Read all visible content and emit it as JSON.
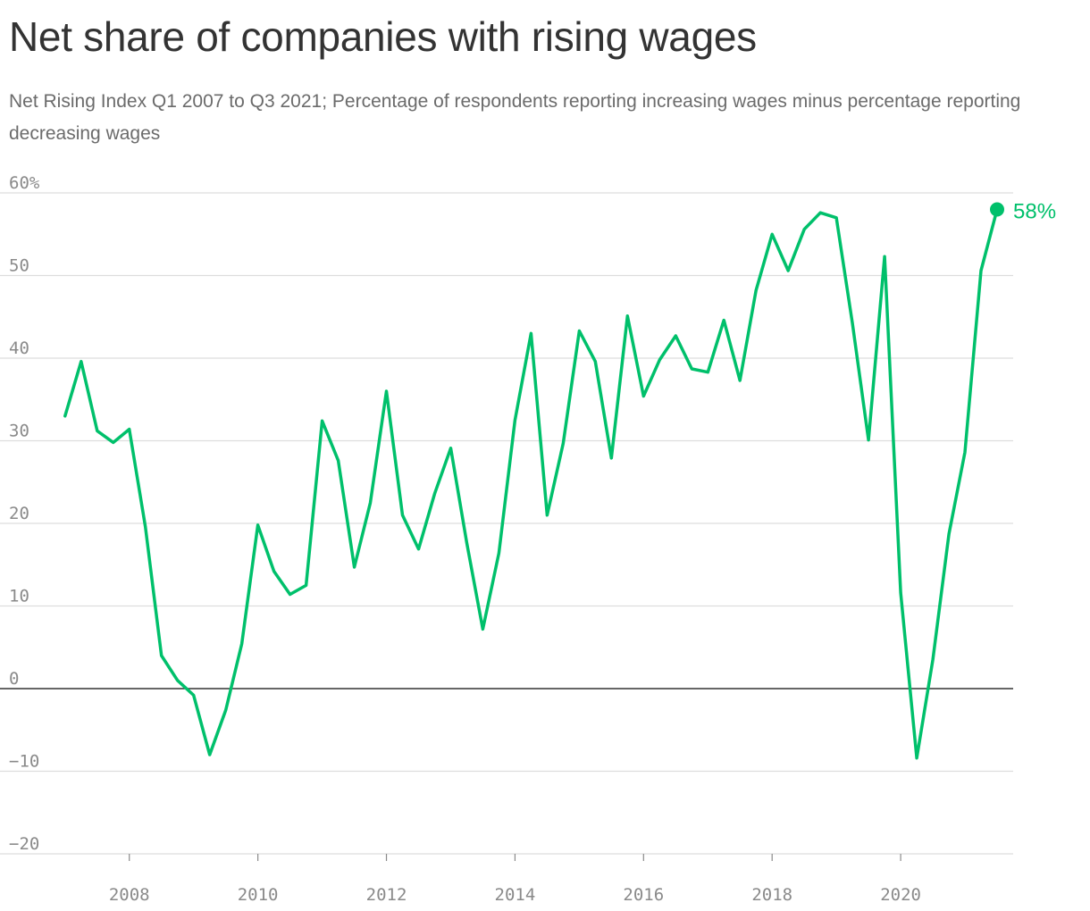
{
  "header": {
    "title": "Net share of companies with rising wages",
    "subtitle": "Net Rising Index Q1 2007 to Q3 2021; Percentage of respondents reporting increasing wages minus percentage reporting decreasing wages"
  },
  "colors": {
    "line": "#00c06b",
    "grid": "#dddddd",
    "zero": "#333333",
    "tick": "#8a8a8a"
  },
  "chart_data": {
    "type": "line",
    "title": "Net share of companies with rising wages",
    "subtitle": "Net Rising Index Q1 2007 to Q3 2021; Percentage of respondents reporting increasing wages minus percentage reporting decreasing wages",
    "xlabel": "",
    "ylabel": "",
    "x": [
      "2007-Q1",
      "2007-Q2",
      "2007-Q3",
      "2007-Q4",
      "2008-Q1",
      "2008-Q2",
      "2008-Q3",
      "2008-Q4",
      "2009-Q1",
      "2009-Q2",
      "2009-Q3",
      "2009-Q4",
      "2010-Q1",
      "2010-Q2",
      "2010-Q3",
      "2010-Q4",
      "2011-Q1",
      "2011-Q2",
      "2011-Q3",
      "2011-Q4",
      "2012-Q1",
      "2012-Q2",
      "2012-Q3",
      "2012-Q4",
      "2013-Q1",
      "2013-Q2",
      "2013-Q3",
      "2013-Q4",
      "2014-Q1",
      "2014-Q2",
      "2014-Q3",
      "2014-Q4",
      "2015-Q1",
      "2015-Q2",
      "2015-Q3",
      "2015-Q4",
      "2016-Q1",
      "2016-Q2",
      "2016-Q3",
      "2016-Q4",
      "2017-Q1",
      "2017-Q2",
      "2017-Q3",
      "2017-Q4",
      "2018-Q1",
      "2018-Q2",
      "2018-Q3",
      "2018-Q4",
      "2019-Q1",
      "2019-Q2",
      "2019-Q3",
      "2019-Q4",
      "2020-Q1",
      "2020-Q2",
      "2020-Q3",
      "2020-Q4",
      "2021-Q1",
      "2021-Q2",
      "2021-Q3"
    ],
    "x_numeric": [
      2007.0,
      2007.25,
      2007.5,
      2007.75,
      2008.0,
      2008.25,
      2008.5,
      2008.75,
      2009.0,
      2009.25,
      2009.5,
      2009.75,
      2010.0,
      2010.25,
      2010.5,
      2010.75,
      2011.0,
      2011.25,
      2011.5,
      2011.75,
      2012.0,
      2012.25,
      2012.5,
      2012.75,
      2013.0,
      2013.25,
      2013.5,
      2013.75,
      2014.0,
      2014.25,
      2014.5,
      2014.75,
      2015.0,
      2015.25,
      2015.5,
      2015.75,
      2016.0,
      2016.25,
      2016.5,
      2016.75,
      2017.0,
      2017.25,
      2017.5,
      2017.75,
      2018.0,
      2018.25,
      2018.5,
      2018.75,
      2019.0,
      2019.25,
      2019.5,
      2019.75,
      2020.0,
      2020.25,
      2020.5,
      2020.75,
      2021.0,
      2021.25,
      2021.5
    ],
    "series": [
      {
        "values": [
          33.0,
          39.6,
          31.2,
          29.8,
          31.4,
          19.6,
          4.0,
          1.0,
          -0.8,
          -8.0,
          -2.6,
          5.4,
          19.8,
          14.2,
          11.4,
          12.5,
          32.4,
          27.6,
          14.7,
          22.5,
          36.0,
          21.0,
          16.9,
          23.6,
          29.1,
          17.6,
          7.2,
          16.4,
          32.5,
          43.0,
          21.0,
          29.7,
          43.3,
          39.6,
          27.9,
          45.1,
          35.4,
          39.8,
          42.7,
          38.7,
          38.3,
          44.6,
          37.3,
          48.2,
          55.0,
          50.6,
          55.6,
          57.6,
          57.0,
          44.2,
          30.1,
          52.3,
          11.6,
          -8.4,
          3.5,
          18.7,
          28.6,
          50.6,
          58.0
        ]
      }
    ],
    "end_label": "58%",
    "xlim": [
      2006.85,
      2021.75
    ],
    "ylim": [
      -20,
      60
    ],
    "y_ticks": [
      -20,
      -10,
      0,
      10,
      20,
      30,
      40,
      50,
      60
    ],
    "y_tick_labels": [
      "−20",
      "−10",
      "0",
      "10",
      "20",
      "30",
      "40",
      "50",
      "60%"
    ],
    "x_ticks": [
      2008,
      2010,
      2012,
      2014,
      2016,
      2018,
      2020
    ],
    "x_tick_labels": [
      "2008",
      "2010",
      "2012",
      "2014",
      "2016",
      "2018",
      "2020"
    ],
    "grid": true,
    "legend": "none"
  }
}
